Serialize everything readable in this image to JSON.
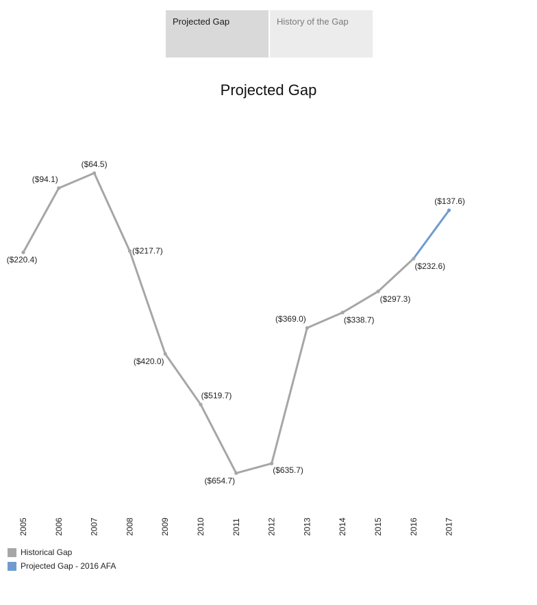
{
  "tabs": [
    {
      "label": "Projected Gap",
      "active": true
    },
    {
      "label": "History of the Gap",
      "active": false
    }
  ],
  "colors": {
    "historical": "#a6a6a6",
    "projected": "#6f9bcf",
    "tab_active_bg": "#d9d9d9",
    "tab_inactive_bg": "#ececec"
  },
  "chart_data": {
    "type": "line",
    "title": "Projected Gap",
    "xlabel": "",
    "ylabel": "",
    "grid": false,
    "legend_position": "bottom-left",
    "ylim": [
      -700,
      0
    ],
    "categories": [
      "2005",
      "2006",
      "2007",
      "2008",
      "2009",
      "2010",
      "2011",
      "2012",
      "2013",
      "2014",
      "2015",
      "2016",
      "2017"
    ],
    "values": [
      -220.4,
      -94.1,
      -64.5,
      -217.7,
      -420.0,
      -519.7,
      -654.7,
      -635.7,
      -369.0,
      -338.7,
      -297.3,
      -232.6,
      -137.6
    ],
    "labels": [
      "($220.4)",
      "($94.1)",
      "($64.5)",
      "($217.7)",
      "($420.0)",
      "($519.7)",
      "($654.7)",
      "($635.7)",
      "($369.0)",
      "($338.7)",
      "($297.3)",
      "($232.6)",
      "($137.6)"
    ],
    "series": [
      {
        "name": "Historical Gap",
        "from": "2005",
        "to": "2016",
        "color": "#a6a6a6"
      },
      {
        "name": "Projected Gap - 2016 AFA",
        "from": "2016",
        "to": "2017",
        "color": "#6f9bcf"
      }
    ]
  },
  "legend": [
    {
      "label": "Historical Gap",
      "color": "#a6a6a6"
    },
    {
      "label": "Projected Gap - 2016 AFA",
      "color": "#6f9bcf"
    }
  ]
}
